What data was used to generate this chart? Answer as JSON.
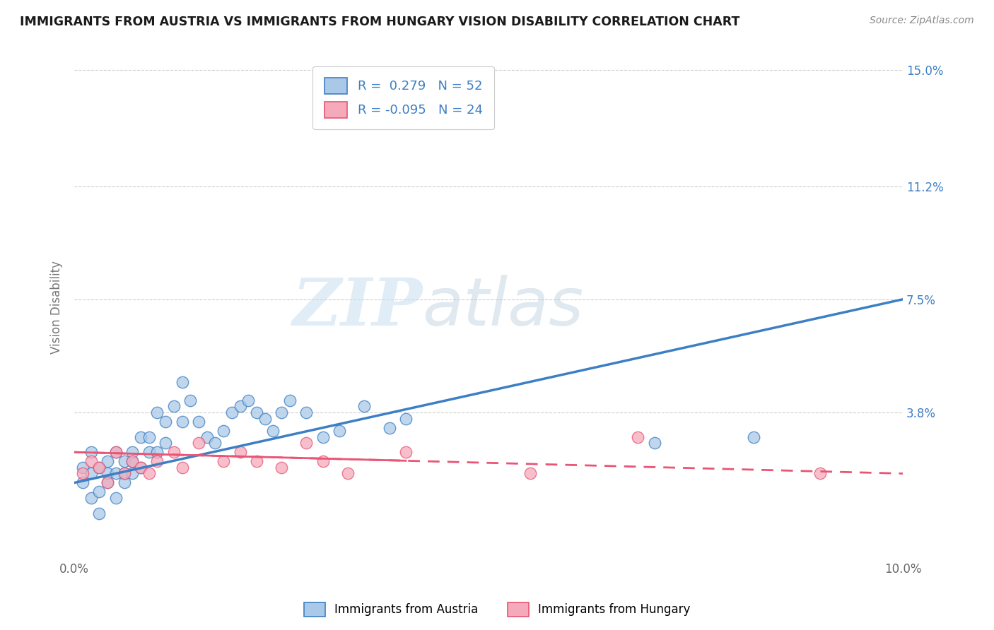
{
  "title": "IMMIGRANTS FROM AUSTRIA VS IMMIGRANTS FROM HUNGARY VISION DISABILITY CORRELATION CHART",
  "source": "Source: ZipAtlas.com",
  "ylabel": "Vision Disability",
  "xlim": [
    0.0,
    0.1
  ],
  "ylim": [
    -0.005,
    0.155
  ],
  "display_ylim": [
    0.0,
    0.15
  ],
  "xtick_positions": [
    0.0,
    0.01,
    0.02,
    0.03,
    0.04,
    0.05,
    0.06,
    0.07,
    0.08,
    0.09,
    0.1
  ],
  "xtick_labels": [
    "0.0%",
    "",
    "",
    "",
    "",
    "",
    "",
    "",
    "",
    "",
    "10.0%"
  ],
  "ytick_values": [
    0.038,
    0.075,
    0.112,
    0.15
  ],
  "ytick_labels": [
    "3.8%",
    "7.5%",
    "11.2%",
    "15.0%"
  ],
  "austria_color": "#aac9e8",
  "hungary_color": "#f5aabb",
  "austria_line_color": "#3d7fc4",
  "hungary_line_color": "#e85575",
  "austria_R": 0.279,
  "austria_N": 52,
  "hungary_R": -0.095,
  "hungary_N": 24,
  "watermark_zip": "ZIP",
  "watermark_atlas": "atlas",
  "austria_scatter_x": [
    0.001,
    0.001,
    0.002,
    0.002,
    0.002,
    0.003,
    0.003,
    0.003,
    0.004,
    0.004,
    0.004,
    0.005,
    0.005,
    0.005,
    0.006,
    0.006,
    0.006,
    0.007,
    0.007,
    0.007,
    0.008,
    0.008,
    0.009,
    0.009,
    0.01,
    0.01,
    0.011,
    0.011,
    0.012,
    0.013,
    0.013,
    0.014,
    0.015,
    0.016,
    0.017,
    0.018,
    0.019,
    0.02,
    0.021,
    0.022,
    0.023,
    0.024,
    0.025,
    0.026,
    0.028,
    0.03,
    0.032,
    0.035,
    0.038,
    0.04,
    0.07,
    0.082
  ],
  "austria_scatter_y": [
    0.015,
    0.02,
    0.01,
    0.018,
    0.025,
    0.005,
    0.012,
    0.02,
    0.015,
    0.018,
    0.022,
    0.01,
    0.018,
    0.025,
    0.015,
    0.018,
    0.022,
    0.018,
    0.022,
    0.025,
    0.02,
    0.03,
    0.025,
    0.03,
    0.025,
    0.038,
    0.028,
    0.035,
    0.04,
    0.035,
    0.048,
    0.042,
    0.035,
    0.03,
    0.028,
    0.032,
    0.038,
    0.04,
    0.042,
    0.038,
    0.036,
    0.032,
    0.038,
    0.042,
    0.038,
    0.03,
    0.032,
    0.04,
    0.033,
    0.036,
    0.028,
    0.03
  ],
  "hungary_scatter_x": [
    0.001,
    0.002,
    0.003,
    0.004,
    0.005,
    0.006,
    0.007,
    0.008,
    0.009,
    0.01,
    0.012,
    0.013,
    0.015,
    0.018,
    0.02,
    0.022,
    0.025,
    0.028,
    0.03,
    0.033,
    0.04,
    0.055,
    0.068,
    0.09
  ],
  "hungary_scatter_y": [
    0.018,
    0.022,
    0.02,
    0.015,
    0.025,
    0.018,
    0.022,
    0.02,
    0.018,
    0.022,
    0.025,
    0.02,
    0.028,
    0.022,
    0.025,
    0.022,
    0.02,
    0.028,
    0.022,
    0.018,
    0.025,
    0.018,
    0.03,
    0.018
  ],
  "austria_line_x0": 0.0,
  "austria_line_y0": 0.015,
  "austria_line_x1": 0.1,
  "austria_line_y1": 0.075,
  "hungary_line_x0": 0.0,
  "hungary_line_y0": 0.025,
  "hungary_line_x1": 0.1,
  "hungary_line_y1": 0.018
}
